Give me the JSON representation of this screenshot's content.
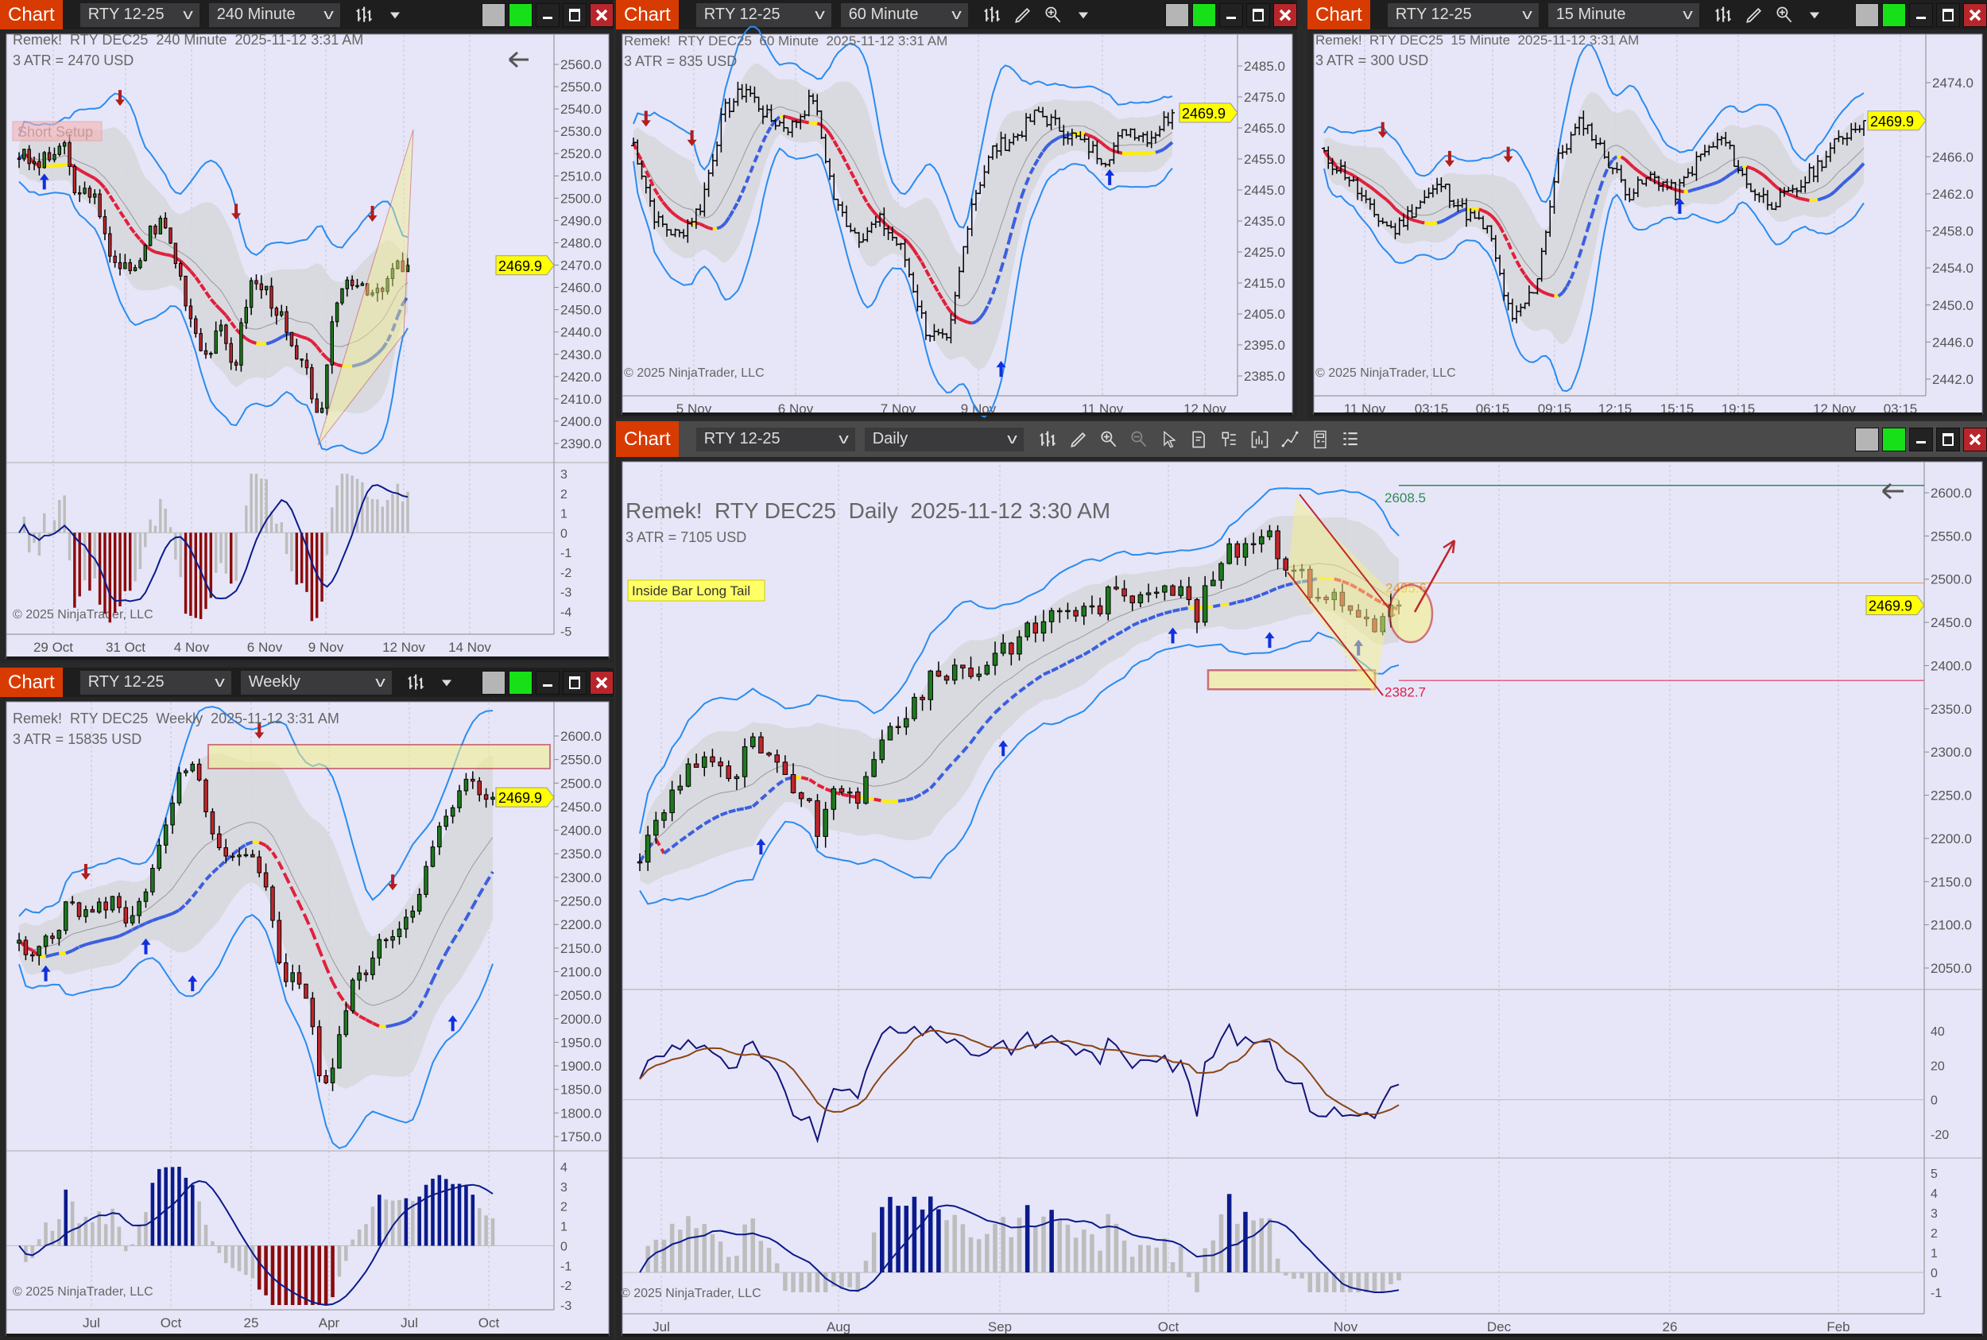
{
  "colors": {
    "accent": "#d83b01",
    "plot_bg": "#e6e6f8",
    "band": "#2a8cf0",
    "bull": "#1e7a1e",
    "bear": "#c0262b",
    "last_price_bg": "#ffff00",
    "hist_up": "#0b1a8c",
    "hist_down": "#8c0a0a",
    "hist_neutral": "#bdbdbd"
  },
  "panels": [
    {
      "chart_label": "Chart",
      "instrument": "RTY 12-25",
      "interval": "240 Minute",
      "toolbar": [
        "bar-style-icon",
        "dropdown-arrow-icon"
      ],
      "title": "Remek!  RTY DEC25  240 Minute  2025-11-12 3:31 AM",
      "atr": "3 ATR = 2470 USD",
      "copyright": "© 2025 NinjaTrader, LLC",
      "last_price": "2469.9",
      "setup_label": "Short Setup",
      "y_ticks": [
        "2560.0",
        "2550.0",
        "2540.0",
        "2530.0",
        "2520.0",
        "2510.0",
        "2500.0",
        "2490.0",
        "2480.0",
        "2470.0",
        "2460.0",
        "2450.0",
        "2440.0",
        "2430.0",
        "2420.0",
        "2410.0",
        "2400.0",
        "2390.0"
      ],
      "ind_ticks": [
        "3",
        "2",
        "1",
        "0",
        "-1",
        "-2",
        "-3",
        "-4",
        "-5"
      ],
      "x_labels": [
        "29 Oct",
        "31 Oct",
        "4 Nov",
        "6 Nov",
        "9 Nov",
        "12 Nov",
        "14 Nov"
      ],
      "price_path": [
        2520,
        2515,
        2517,
        2525,
        2500,
        2505,
        2480,
        2470,
        2465,
        2485,
        2490,
        2470,
        2445,
        2430,
        2440,
        2425,
        2462,
        2460,
        2450,
        2430,
        2420,
        2400,
        2455,
        2465,
        2462,
        2455,
        2468,
        2470
      ]
    },
    {
      "chart_label": "Chart",
      "instrument": "RTY 12-25",
      "interval": "60 Minute",
      "toolbar": [
        "bar-style-icon",
        "pencil-icon",
        "zoom-in-icon",
        "dropdown-arrow-icon"
      ],
      "title": "Remek!  RTY DEC25  60 Minute  2025-11-12 3:31 AM",
      "atr": "3 ATR = 835 USD",
      "copyright": "© 2025 NinjaTrader, LLC",
      "last_price": "2469.9",
      "y_ticks": [
        "2485.0",
        "2475.0",
        "2465.0",
        "2455.0",
        "2445.0",
        "2435.0",
        "2425.0",
        "2415.0",
        "2405.0",
        "2395.0",
        "2385.0"
      ],
      "x_labels": [
        "5 Nov",
        "6 Nov",
        "7 Nov",
        "9 Nov",
        "11 Nov",
        "12 Nov"
      ],
      "price_path": [
        2460,
        2435,
        2430,
        2440,
        2470,
        2478,
        2468,
        2465,
        2475,
        2440,
        2430,
        2435,
        2425,
        2400,
        2395,
        2440,
        2458,
        2462,
        2470,
        2465,
        2460,
        2455,
        2465,
        2462,
        2470
      ]
    },
    {
      "chart_label": "Chart",
      "instrument": "RTY 12-25",
      "interval": "15 Minute",
      "toolbar": [
        "bar-style-icon",
        "pencil-icon",
        "zoom-in-icon",
        "dropdown-arrow-icon"
      ],
      "title": "Remek!  RTY DEC25  15 Minute  2025-11-12 3:31 AM",
      "atr": "3 ATR = 300 USD",
      "copyright": "© 2025 NinjaTrader, LLC",
      "last_price": "2469.9",
      "y_ticks": [
        "2474.0",
        "2466.0",
        "2462.0",
        "2458.0",
        "2454.0",
        "2450.0",
        "2446.0",
        "2442.0"
      ],
      "x_labels": [
        "11 Nov",
        "03:15",
        "06:15",
        "09:15",
        "12:15",
        "15:15",
        "19:15",
        "12 Nov",
        "03:15"
      ],
      "price_path": [
        2466,
        2464,
        2460,
        2458,
        2461,
        2463,
        2460,
        2458,
        2448,
        2452,
        2466,
        2470,
        2466,
        2462,
        2464,
        2462,
        2466,
        2468,
        2463,
        2461,
        2462,
        2465,
        2468,
        2470
      ]
    },
    {
      "chart_label": "Chart",
      "instrument": "RTY 12-25",
      "interval": "Weekly",
      "toolbar": [
        "bar-style-icon",
        "dropdown-arrow-icon"
      ],
      "title": "Remek!  RTY DEC25  Weekly  2025-11-12 3:31 AM",
      "atr": "3 ATR = 15835 USD",
      "copyright": "© 2025 NinjaTrader, LLC",
      "last_price": "2469.9",
      "y_ticks": [
        "2600.0",
        "2550.0",
        "2500.0",
        "2450.0",
        "2400.0",
        "2350.0",
        "2300.0",
        "2250.0",
        "2200.0",
        "2150.0",
        "2100.0",
        "2050.0",
        "2000.0",
        "1950.0",
        "1900.0",
        "1850.0",
        "1800.0",
        "1750.0"
      ],
      "ind_ticks": [
        "4",
        "3",
        "2",
        "1",
        "0",
        "-1",
        "-2",
        "-3"
      ],
      "x_labels": [
        "Jul",
        "Oct",
        "25",
        "Apr",
        "Jul",
        "Oct"
      ],
      "price_path": [
        2150,
        2120,
        2180,
        2200,
        2250,
        2220,
        2230,
        2260,
        2200,
        2250,
        2300,
        2380,
        2500,
        2530,
        2480,
        2350,
        2330,
        2340,
        2320,
        2250,
        2100,
        2080,
        2050,
        1850,
        1900,
        2050,
        2100,
        2130,
        2180,
        2200,
        2250,
        2320,
        2400,
        2450,
        2500,
        2480,
        2470
      ]
    },
    {
      "chart_label": "Chart",
      "instrument": "RTY 12-25",
      "interval": "Daily",
      "toolbar": [
        "bar-style-icon",
        "pencil-icon",
        "zoom-in-icon",
        "zoom-out-icon",
        "pointer-icon",
        "data-box-icon",
        "properties-icon",
        "strategies-icon",
        "drawing-tools-icon",
        "calculator-icon",
        "list-icon"
      ],
      "title": "Remek!  RTY DEC25  Daily  2025-11-12 3:30 AM",
      "atr": "3 ATR = 7105 USD",
      "copyright": "© 2025 NinjaTrader, LLC",
      "last_price": "2469.9",
      "pattern_label": "Inside Bar Long Tail",
      "target_high": "2608.5",
      "target_mid": "2495.6",
      "target_low": "2382.7",
      "y_ticks": [
        "2600.0",
        "2550.0",
        "2500.0",
        "2450.0",
        "2400.0",
        "2350.0",
        "2300.0",
        "2250.0",
        "2200.0",
        "2150.0",
        "2100.0",
        "2050.0"
      ],
      "osc_ticks": [
        "40",
        "20",
        "0",
        "-20"
      ],
      "ind_ticks": [
        "5",
        "4",
        "3",
        "2",
        "1",
        "0",
        "-1"
      ],
      "x_labels": [
        "Jul",
        "Aug",
        "Sep",
        "Oct",
        "Nov",
        "Dec",
        "26",
        "Feb"
      ],
      "price_path": [
        2180,
        2230,
        2280,
        2300,
        2260,
        2310,
        2280,
        2260,
        2210,
        2260,
        2250,
        2320,
        2350,
        2380,
        2400,
        2390,
        2420,
        2430,
        2450,
        2470,
        2460,
        2480,
        2480,
        2500,
        2490,
        2460,
        2520,
        2540,
        2560,
        2520,
        2490,
        2480,
        2460,
        2450,
        2470
      ]
    }
  ]
}
